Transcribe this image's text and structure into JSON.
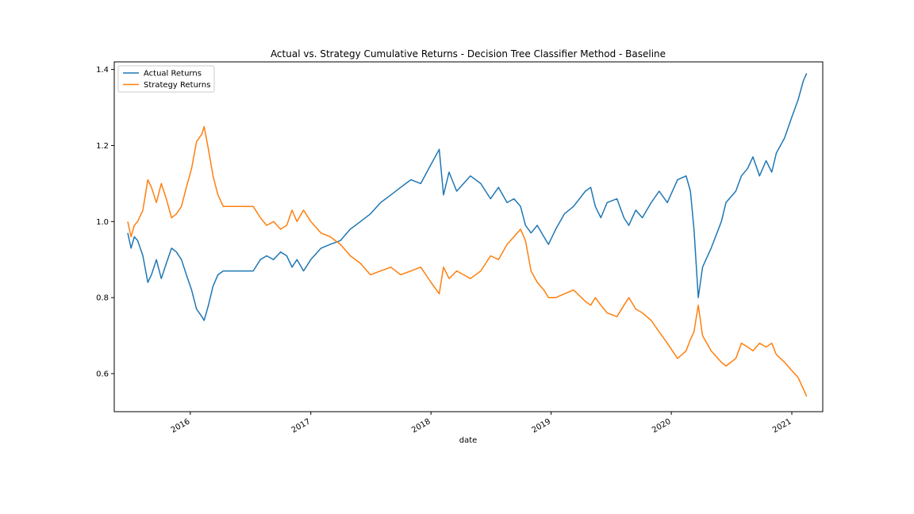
{
  "chart_data": {
    "type": "line",
    "title": "Actual vs. Strategy Cumulative Returns - Decision Tree Classifier Method - Baseline",
    "xlabel": "date",
    "ylabel": "",
    "xlim": [
      "2015-05-15",
      "2021-04-05"
    ],
    "ylim": [
      0.5,
      1.42
    ],
    "x_ticks": [
      "2016",
      "2017",
      "2018",
      "2019",
      "2020",
      "2021"
    ],
    "y_ticks": [
      "0.6",
      "0.8",
      "1.0",
      "1.2",
      "1.4"
    ],
    "grid": false,
    "legend_position": "upper-left",
    "series": [
      {
        "name": "Actual Returns",
        "color": "#1f77b4",
        "points": [
          [
            "2015-06-25",
            0.97
          ],
          [
            "2015-07-05",
            0.93
          ],
          [
            "2015-07-15",
            0.96
          ],
          [
            "2015-07-25",
            0.95
          ],
          [
            "2015-08-10",
            0.91
          ],
          [
            "2015-08-25",
            0.84
          ],
          [
            "2015-09-05",
            0.86
          ],
          [
            "2015-09-20",
            0.9
          ],
          [
            "2015-10-05",
            0.85
          ],
          [
            "2015-10-20",
            0.89
          ],
          [
            "2015-11-05",
            0.93
          ],
          [
            "2015-11-20",
            0.92
          ],
          [
            "2015-12-05",
            0.9
          ],
          [
            "2015-12-20",
            0.86
          ],
          [
            "2016-01-05",
            0.82
          ],
          [
            "2016-01-20",
            0.77
          ],
          [
            "2016-02-05",
            0.75
          ],
          [
            "2016-02-12",
            0.74
          ],
          [
            "2016-02-25",
            0.78
          ],
          [
            "2016-03-10",
            0.83
          ],
          [
            "2016-03-25",
            0.86
          ],
          [
            "2016-04-10",
            0.87
          ],
          [
            "2016-07-10",
            0.87
          ],
          [
            "2016-08-01",
            0.9
          ],
          [
            "2016-08-20",
            0.91
          ],
          [
            "2016-09-10",
            0.9
          ],
          [
            "2016-10-01",
            0.92
          ],
          [
            "2016-10-20",
            0.91
          ],
          [
            "2016-11-05",
            0.88
          ],
          [
            "2016-11-20",
            0.9
          ],
          [
            "2016-12-10",
            0.87
          ],
          [
            "2017-01-01",
            0.9
          ],
          [
            "2017-02-01",
            0.93
          ],
          [
            "2017-03-01",
            0.94
          ],
          [
            "2017-04-01",
            0.95
          ],
          [
            "2017-05-01",
            0.98
          ],
          [
            "2017-06-01",
            1.0
          ],
          [
            "2017-07-01",
            1.02
          ],
          [
            "2017-08-01",
            1.05
          ],
          [
            "2017-09-01",
            1.07
          ],
          [
            "2017-10-01",
            1.09
          ],
          [
            "2017-11-01",
            1.11
          ],
          [
            "2017-12-01",
            1.1
          ],
          [
            "2018-01-01",
            1.15
          ],
          [
            "2018-01-26",
            1.19
          ],
          [
            "2018-02-08",
            1.07
          ],
          [
            "2018-02-25",
            1.13
          ],
          [
            "2018-03-20",
            1.08
          ],
          [
            "2018-04-10",
            1.1
          ],
          [
            "2018-05-01",
            1.12
          ],
          [
            "2018-06-01",
            1.1
          ],
          [
            "2018-07-01",
            1.06
          ],
          [
            "2018-07-25",
            1.09
          ],
          [
            "2018-08-20",
            1.05
          ],
          [
            "2018-09-10",
            1.06
          ],
          [
            "2018-09-30",
            1.04
          ],
          [
            "2018-10-15",
            0.99
          ],
          [
            "2018-11-01",
            0.97
          ],
          [
            "2018-11-20",
            0.99
          ],
          [
            "2018-12-10",
            0.96
          ],
          [
            "2018-12-24",
            0.94
          ],
          [
            "2019-01-15",
            0.98
          ],
          [
            "2019-02-10",
            1.02
          ],
          [
            "2019-03-10",
            1.04
          ],
          [
            "2019-04-15",
            1.08
          ],
          [
            "2019-05-01",
            1.09
          ],
          [
            "2019-05-15",
            1.04
          ],
          [
            "2019-06-01",
            1.01
          ],
          [
            "2019-06-20",
            1.05
          ],
          [
            "2019-07-20",
            1.06
          ],
          [
            "2019-08-10",
            1.01
          ],
          [
            "2019-08-25",
            0.99
          ],
          [
            "2019-09-15",
            1.03
          ],
          [
            "2019-10-05",
            1.01
          ],
          [
            "2019-11-01",
            1.05
          ],
          [
            "2019-11-25",
            1.08
          ],
          [
            "2019-12-20",
            1.05
          ],
          [
            "2020-01-20",
            1.11
          ],
          [
            "2020-02-15",
            1.12
          ],
          [
            "2020-02-28",
            1.08
          ],
          [
            "2020-03-10",
            0.98
          ],
          [
            "2020-03-23",
            0.8
          ],
          [
            "2020-04-05",
            0.88
          ],
          [
            "2020-05-01",
            0.93
          ],
          [
            "2020-06-01",
            1.0
          ],
          [
            "2020-06-15",
            1.05
          ],
          [
            "2020-07-15",
            1.08
          ],
          [
            "2020-08-01",
            1.12
          ],
          [
            "2020-08-20",
            1.14
          ],
          [
            "2020-09-05",
            1.17
          ],
          [
            "2020-09-25",
            1.12
          ],
          [
            "2020-10-15",
            1.16
          ],
          [
            "2020-11-01",
            1.13
          ],
          [
            "2020-11-15",
            1.18
          ],
          [
            "2020-12-10",
            1.22
          ],
          [
            "2020-12-30",
            1.27
          ],
          [
            "2021-01-20",
            1.32
          ],
          [
            "2021-02-05",
            1.37
          ],
          [
            "2021-02-15",
            1.39
          ]
        ]
      },
      {
        "name": "Strategy Returns",
        "color": "#ff7f0e",
        "points": [
          [
            "2015-06-25",
            1.0
          ],
          [
            "2015-07-05",
            0.96
          ],
          [
            "2015-07-15",
            0.99
          ],
          [
            "2015-07-25",
            1.0
          ],
          [
            "2015-08-10",
            1.03
          ],
          [
            "2015-08-25",
            1.11
          ],
          [
            "2015-09-05",
            1.09
          ],
          [
            "2015-09-20",
            1.05
          ],
          [
            "2015-10-05",
            1.1
          ],
          [
            "2015-10-20",
            1.06
          ],
          [
            "2015-11-05",
            1.01
          ],
          [
            "2015-11-20",
            1.02
          ],
          [
            "2015-12-05",
            1.04
          ],
          [
            "2015-12-20",
            1.09
          ],
          [
            "2016-01-05",
            1.14
          ],
          [
            "2016-01-20",
            1.21
          ],
          [
            "2016-02-05",
            1.23
          ],
          [
            "2016-02-12",
            1.25
          ],
          [
            "2016-02-25",
            1.19
          ],
          [
            "2016-03-10",
            1.12
          ],
          [
            "2016-03-25",
            1.07
          ],
          [
            "2016-04-10",
            1.04
          ],
          [
            "2016-07-10",
            1.04
          ],
          [
            "2016-08-01",
            1.01
          ],
          [
            "2016-08-20",
            0.99
          ],
          [
            "2016-09-10",
            1.0
          ],
          [
            "2016-10-01",
            0.98
          ],
          [
            "2016-10-20",
            0.99
          ],
          [
            "2016-11-05",
            1.03
          ],
          [
            "2016-11-20",
            1.0
          ],
          [
            "2016-12-10",
            1.03
          ],
          [
            "2017-01-01",
            1.0
          ],
          [
            "2017-02-01",
            0.97
          ],
          [
            "2017-03-01",
            0.96
          ],
          [
            "2017-04-01",
            0.94
          ],
          [
            "2017-05-01",
            0.91
          ],
          [
            "2017-06-01",
            0.89
          ],
          [
            "2017-07-01",
            0.86
          ],
          [
            "2017-08-01",
            0.87
          ],
          [
            "2017-09-01",
            0.88
          ],
          [
            "2017-10-01",
            0.86
          ],
          [
            "2017-11-01",
            0.87
          ],
          [
            "2017-12-01",
            0.88
          ],
          [
            "2018-01-01",
            0.84
          ],
          [
            "2018-01-26",
            0.81
          ],
          [
            "2018-02-08",
            0.88
          ],
          [
            "2018-02-25",
            0.85
          ],
          [
            "2018-03-20",
            0.87
          ],
          [
            "2018-04-10",
            0.86
          ],
          [
            "2018-05-01",
            0.85
          ],
          [
            "2018-06-01",
            0.87
          ],
          [
            "2018-07-01",
            0.91
          ],
          [
            "2018-07-25",
            0.9
          ],
          [
            "2018-08-20",
            0.94
          ],
          [
            "2018-09-10",
            0.96
          ],
          [
            "2018-09-30",
            0.98
          ],
          [
            "2018-10-15",
            0.95
          ],
          [
            "2018-11-01",
            0.87
          ],
          [
            "2018-11-20",
            0.84
          ],
          [
            "2018-12-10",
            0.82
          ],
          [
            "2018-12-24",
            0.8
          ],
          [
            "2019-01-15",
            0.8
          ],
          [
            "2019-02-10",
            0.81
          ],
          [
            "2019-03-10",
            0.82
          ],
          [
            "2019-04-15",
            0.79
          ],
          [
            "2019-05-01",
            0.78
          ],
          [
            "2019-05-15",
            0.8
          ],
          [
            "2019-06-01",
            0.78
          ],
          [
            "2019-06-20",
            0.76
          ],
          [
            "2019-07-20",
            0.75
          ],
          [
            "2019-08-10",
            0.78
          ],
          [
            "2019-08-25",
            0.8
          ],
          [
            "2019-09-15",
            0.77
          ],
          [
            "2019-10-05",
            0.76
          ],
          [
            "2019-11-01",
            0.74
          ],
          [
            "2019-11-25",
            0.71
          ],
          [
            "2019-12-20",
            0.68
          ],
          [
            "2020-01-20",
            0.64
          ],
          [
            "2020-02-15",
            0.66
          ],
          [
            "2020-02-28",
            0.69
          ],
          [
            "2020-03-10",
            0.71
          ],
          [
            "2020-03-23",
            0.78
          ],
          [
            "2020-04-05",
            0.7
          ],
          [
            "2020-05-01",
            0.66
          ],
          [
            "2020-06-01",
            0.63
          ],
          [
            "2020-06-15",
            0.62
          ],
          [
            "2020-07-15",
            0.64
          ],
          [
            "2020-08-01",
            0.68
          ],
          [
            "2020-08-20",
            0.67
          ],
          [
            "2020-09-05",
            0.66
          ],
          [
            "2020-09-25",
            0.68
          ],
          [
            "2020-10-15",
            0.67
          ],
          [
            "2020-11-01",
            0.68
          ],
          [
            "2020-11-15",
            0.65
          ],
          [
            "2020-12-10",
            0.63
          ],
          [
            "2020-12-30",
            0.61
          ],
          [
            "2021-01-20",
            0.59
          ],
          [
            "2021-02-05",
            0.56
          ],
          [
            "2021-02-15",
            0.54
          ]
        ]
      }
    ]
  }
}
